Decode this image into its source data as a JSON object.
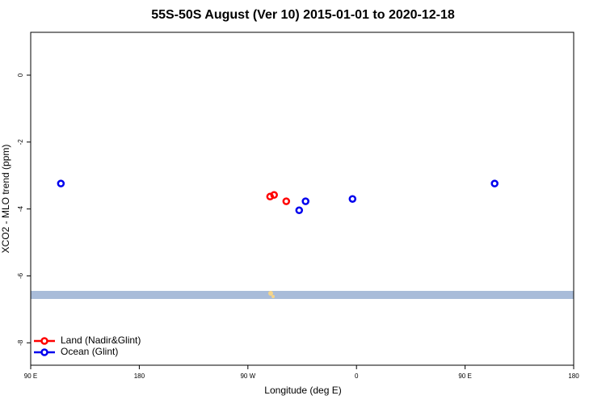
{
  "chart_data": {
    "type": "scatter",
    "title": "55S-50S August (Ver 10)   2015-01-01 to 2020-12-18",
    "x_label": "Longitude (deg E)",
    "y_label": "XCO2 - MLO trend (ppm)",
    "xlim": [
      -270,
      180
    ],
    "ylim": [
      -8.67,
      1.28
    ],
    "xticks": [
      {
        "value": -270,
        "label": "90 E"
      },
      {
        "value": -180,
        "label": "180"
      },
      {
        "value": -90,
        "label": "90 W"
      },
      0,
      {
        "value": 90,
        "label": "90 E"
      },
      {
        "value": 180,
        "label": "180"
      }
    ],
    "yticks": [
      0,
      -2,
      -4,
      -6,
      -8
    ],
    "legend": "bottom-left",
    "series": [
      {
        "name": "Land (Nadir&Glint)",
        "color": "#ff0000",
        "x": [
          -71.6,
          -68.3,
          -58.2
        ],
        "values": [
          -3.63,
          -3.58,
          -3.77
        ]
      },
      {
        "name": "Ocean (Glint)",
        "color": "#0000ee",
        "x": [
          -245,
          -47.5,
          -42.2,
          -3.3,
          114.5
        ],
        "values": [
          -3.24,
          -4.04,
          -3.77,
          -3.7,
          -3.24
        ]
      }
    ]
  }
}
